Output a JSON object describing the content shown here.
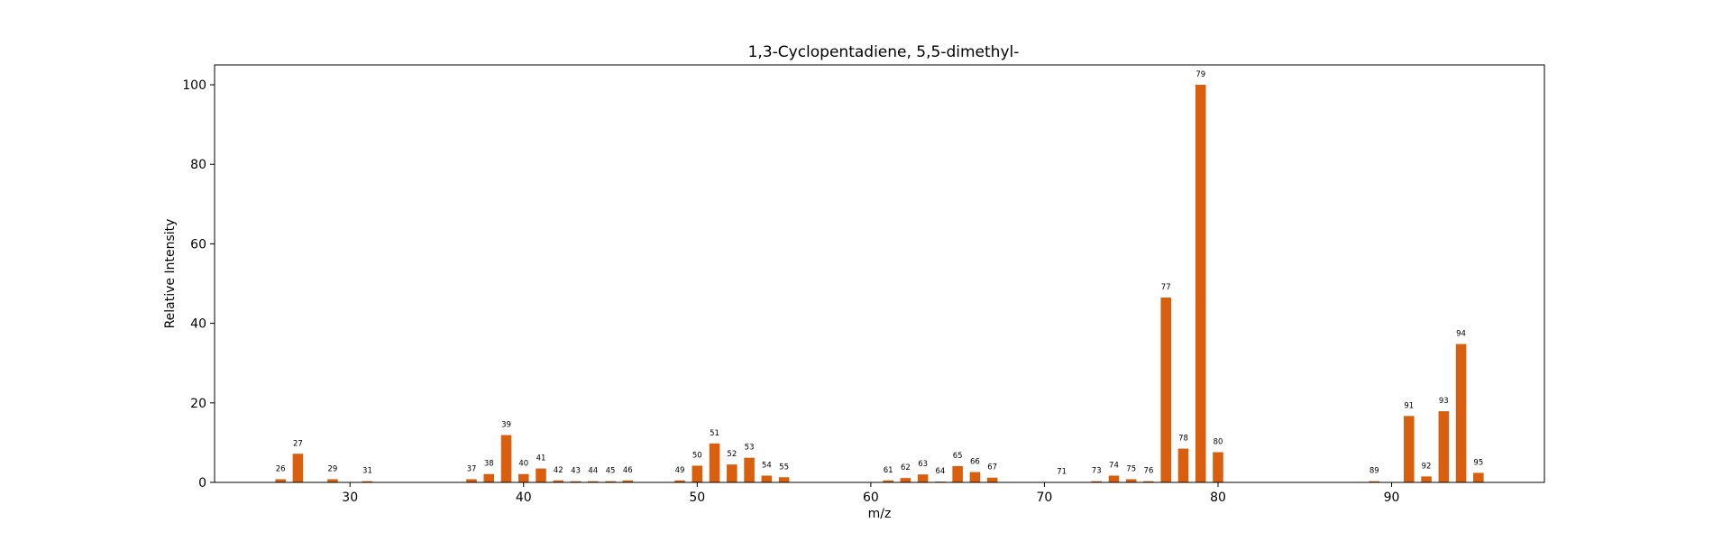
{
  "chart_data": {
    "type": "bar",
    "title": "1,3-Cyclopentadiene, 5,5-dimethyl-",
    "xlabel": "m/z",
    "ylabel": "Relative Intensity",
    "xlim": [
      22.2,
      98.8
    ],
    "ylim": [
      0,
      105
    ],
    "xticks": [
      30,
      40,
      50,
      60,
      70,
      80,
      90
    ],
    "yticks": [
      0,
      20,
      40,
      60,
      80,
      100
    ],
    "grid": false,
    "bar_color": "#d95f0e",
    "x": [
      26,
      27,
      29,
      31,
      37,
      38,
      39,
      40,
      41,
      42,
      43,
      44,
      45,
      46,
      49,
      50,
      51,
      52,
      53,
      54,
      55,
      61,
      62,
      63,
      64,
      65,
      66,
      67,
      71,
      73,
      74,
      75,
      76,
      77,
      78,
      79,
      80,
      89,
      91,
      92,
      93,
      94,
      95
    ],
    "values": [
      0.8,
      7.2,
      0.8,
      0.3,
      0.8,
      2.1,
      11.9,
      2.1,
      3.5,
      0.5,
      0.3,
      0.3,
      0.3,
      0.5,
      0.5,
      4.2,
      9.8,
      4.5,
      6.2,
      1.7,
      1.3,
      0.5,
      1.1,
      2.0,
      0.2,
      4.1,
      2.6,
      1.2,
      0.1,
      0.3,
      1.7,
      0.8,
      0.3,
      46.5,
      8.5,
      100.0,
      7.6,
      0.3,
      16.7,
      1.5,
      17.9,
      34.8,
      2.4
    ]
  }
}
